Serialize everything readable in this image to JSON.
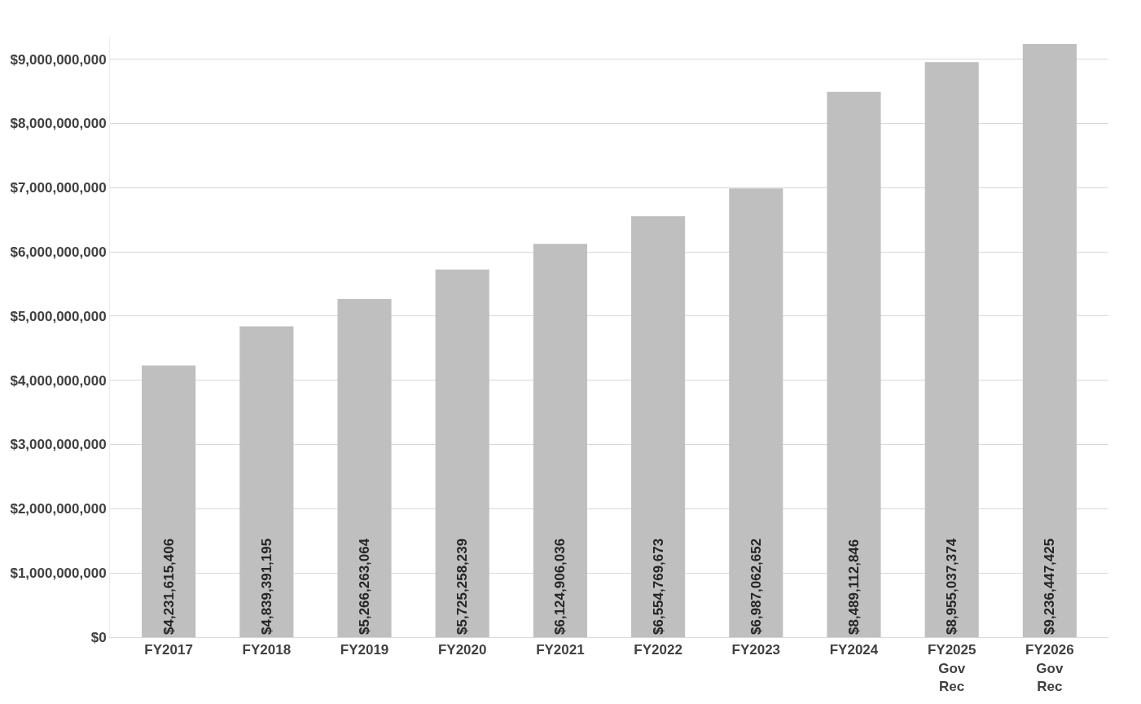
{
  "chart_data": {
    "type": "bar",
    "categories": [
      "FY2017",
      "FY2018",
      "FY2019",
      "FY2020",
      "FY2021",
      "FY2022",
      "FY2023",
      "FY2024",
      "FY2025\nGov\nRec",
      "FY2026\nGov\nRec"
    ],
    "values": [
      4231615406,
      4839391195,
      5266263064,
      5725258239,
      6124906036,
      6554769673,
      6987062652,
      8489112846,
      8955037374,
      9236447425
    ],
    "value_labels": [
      "$4,231,615,406",
      "$4,839,391,195",
      "$5,266,263,064",
      "$5,725,258,239",
      "$6,124,906,036",
      "$6,554,769,673",
      "$6,987,062,652",
      "$8,489,112,846",
      "$8,955,037,374",
      "$9,236,447,425"
    ],
    "color": "#bfbfbf",
    "ylim": [
      0,
      9350000000
    ],
    "yticks": [
      {
        "value": 0,
        "label": "$0"
      },
      {
        "value": 1000000000,
        "label": "$1,000,000,000"
      },
      {
        "value": 2000000000,
        "label": "$2,000,000,000"
      },
      {
        "value": 3000000000,
        "label": "$3,000,000,000"
      },
      {
        "value": 4000000000,
        "label": "$4,000,000,000"
      },
      {
        "value": 5000000000,
        "label": "$5,000,000,000"
      },
      {
        "value": 6000000000,
        "label": "$6,000,000,000"
      },
      {
        "value": 7000000000,
        "label": "$7,000,000,000"
      },
      {
        "value": 8000000000,
        "label": "$8,000,000,000"
      },
      {
        "value": 9000000000,
        "label": "$9,000,000,000"
      }
    ],
    "grid": "y",
    "legend": false
  }
}
